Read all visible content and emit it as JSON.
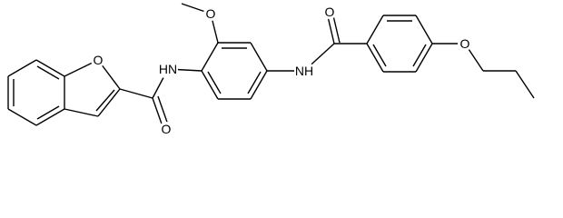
{
  "atom_labels": [
    "O",
    "HN",
    "O",
    "O",
    "NH",
    "O",
    "O"
  ]
}
